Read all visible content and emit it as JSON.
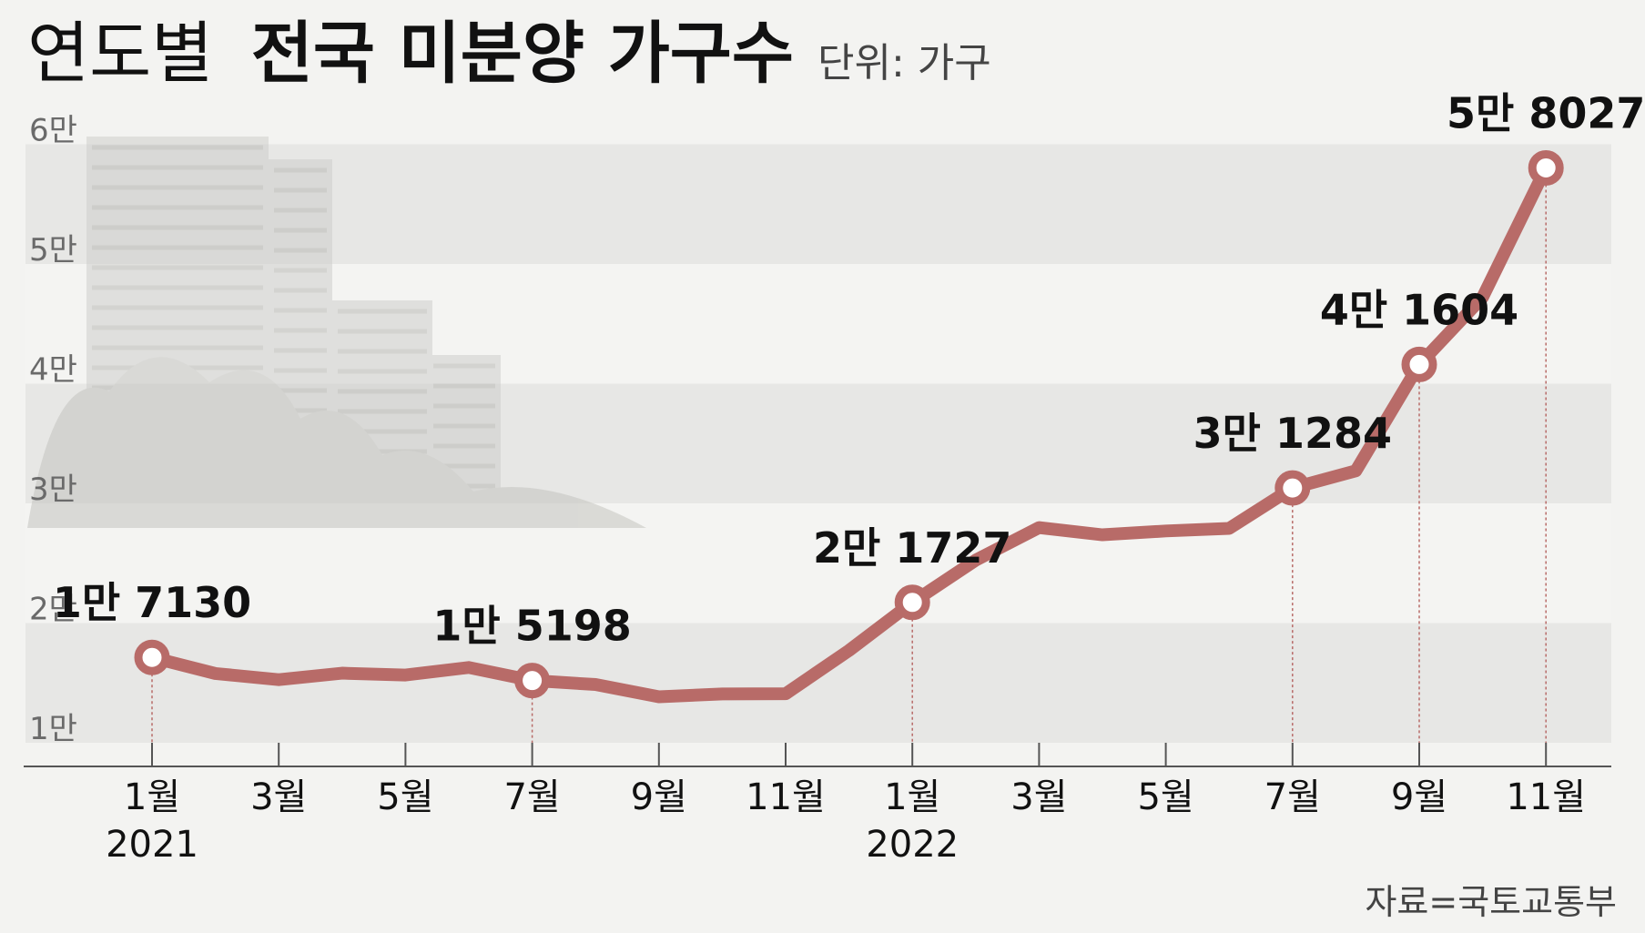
{
  "header": {
    "title_prefix": "연도별",
    "title_main": "전국 미분양 가구수",
    "unit": "단위: 가구"
  },
  "source": "자료=국토교통부",
  "colors": {
    "line": "#b86b68",
    "band_dark": "#e7e7e5",
    "band_light": "#f4f4f2",
    "text": "#111111"
  },
  "chart_data": {
    "type": "line",
    "ylim": [
      10000,
      60000
    ],
    "y_ticks": [
      {
        "value": 10000,
        "label": "1만"
      },
      {
        "value": 20000,
        "label": "2만"
      },
      {
        "value": 30000,
        "label": "3만"
      },
      {
        "value": 40000,
        "label": "4만"
      },
      {
        "value": 50000,
        "label": "5만"
      },
      {
        "value": 60000,
        "label": "6만"
      }
    ],
    "x_ticks": [
      {
        "label": "1월",
        "sub": "2021"
      },
      {
        "label": "3월",
        "sub": ""
      },
      {
        "label": "5월",
        "sub": ""
      },
      {
        "label": "7월",
        "sub": ""
      },
      {
        "label": "9월",
        "sub": ""
      },
      {
        "label": "11월",
        "sub": ""
      },
      {
        "label": "1월",
        "sub": "2022"
      },
      {
        "label": "3월",
        "sub": ""
      },
      {
        "label": "5월",
        "sub": ""
      },
      {
        "label": "7월",
        "sub": ""
      },
      {
        "label": "9월",
        "sub": ""
      },
      {
        "label": "11월",
        "sub": ""
      }
    ],
    "series": [
      {
        "values": [
          17130,
          15786,
          15270,
          15813,
          15660,
          16289,
          15198,
          14864,
          13842,
          14075,
          14094,
          17710,
          21727,
          25254,
          27974,
          27375,
          27694,
          27910,
          31284,
          32722,
          41604,
          47217,
          58027
        ]
      }
    ],
    "highlights": [
      {
        "index": 0,
        "label": "1만 7130"
      },
      {
        "index": 6,
        "label": "1만 5198"
      },
      {
        "index": 12,
        "label": "2만 1727"
      },
      {
        "index": 18,
        "label": "3만 1284"
      },
      {
        "index": 20,
        "label": "4만 1604"
      },
      {
        "index": 22,
        "label": "5만 8027"
      }
    ]
  }
}
